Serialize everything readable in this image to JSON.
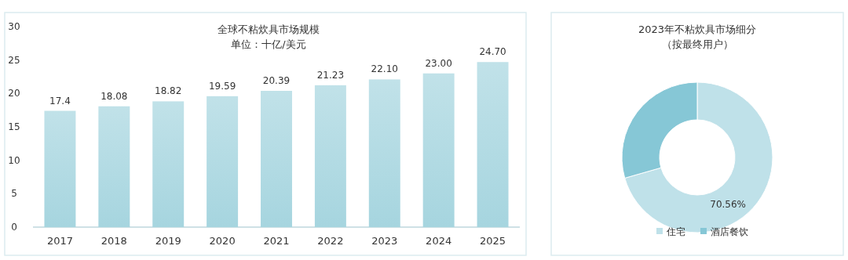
{
  "chart_data": [
    {
      "type": "bar",
      "title": "全球不粘炊具市场规模",
      "subtitle": "单位：十亿/美元",
      "categories": [
        "2017",
        "2018",
        "2019",
        "2020",
        "2021",
        "2022",
        "2023",
        "2024",
        "2025"
      ],
      "values": [
        17.4,
        18.08,
        18.82,
        19.59,
        20.39,
        21.23,
        22.1,
        23.0,
        24.7
      ],
      "value_labels": [
        "17.4",
        "18.08",
        "18.82",
        "19.59",
        "20.39",
        "21.23",
        "22.10",
        "23.00",
        "24.70"
      ],
      "color": "#a6d5df",
      "ylim": [
        0,
        30
      ],
      "yticks": [
        0,
        5,
        10,
        15,
        20,
        25,
        30
      ],
      "grid": false
    },
    {
      "type": "donut",
      "title": "2023年不粘炊具市场细分",
      "subtitle": "（按最终用户）",
      "categories": [
        "住宅",
        "酒店餐饮"
      ],
      "values": [
        70.56,
        29.44
      ],
      "colors": [
        "#bfe1e9",
        "#86c7d6"
      ],
      "value_labels": [
        "70.56%",
        null
      ],
      "legend": "bottom"
    }
  ]
}
